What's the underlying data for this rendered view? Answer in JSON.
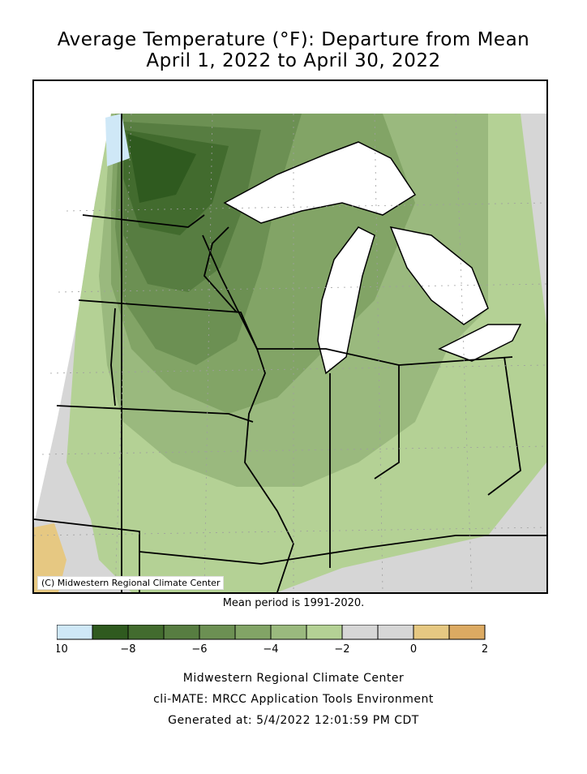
{
  "title": {
    "line1": "Average Temperature (°F): Departure from Mean",
    "line2": "April 1, 2022 to April 30, 2022"
  },
  "map": {
    "credit": "(C) Midwestern Regional Climate Center",
    "mean_period": "Mean period is 1991-2020."
  },
  "legend": {
    "bins": [
      {
        "color": "#cfe8f7"
      },
      {
        "color": "#2f5a1f"
      },
      {
        "color": "#426b2e"
      },
      {
        "color": "#577d41"
      },
      {
        "color": "#6c9053"
      },
      {
        "color": "#82a466"
      },
      {
        "color": "#9ab97e"
      },
      {
        "color": "#b4d195"
      },
      {
        "color": "#d6d6d6"
      },
      {
        "color": "#d6d6d6"
      },
      {
        "color": "#e6c882"
      },
      {
        "color": "#dcaa62"
      }
    ],
    "tick_labels": [
      "-10",
      "-8",
      "-6",
      "-4",
      "-2",
      "0",
      "2"
    ]
  },
  "footer": {
    "line1": "Midwestern Regional Climate Center",
    "line2": "cli-MATE: MRCC Application Tools Environment",
    "line3": "Generated at: 5/4/2022 12:01:59 PM CDT"
  }
}
